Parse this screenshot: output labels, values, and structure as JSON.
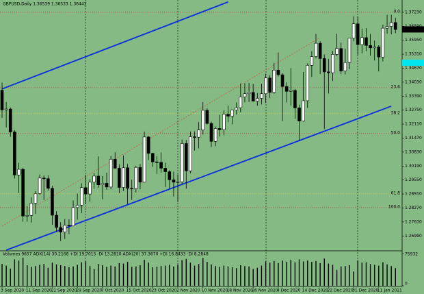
{
  "chart_data": {
    "type": "candlestick",
    "title": "GBPUSD,Daily  1.36539 1.36533 1.36443",
    "categories": [
      "3 Sep 2020",
      null,
      null,
      null,
      null,
      null,
      "11 Sep 2020",
      null,
      null,
      null,
      null,
      null,
      "21 Sep 2020",
      null,
      null,
      null,
      null,
      null,
      "29 Sep 2020",
      null,
      null,
      null,
      null,
      null,
      "7 Oct 2020",
      null,
      null,
      null,
      null,
      null,
      "15 Oct 2020",
      null,
      null,
      null,
      null,
      null,
      "23 Oct 2020",
      null,
      null,
      null,
      null,
      null,
      "2 Nov 2020",
      null,
      null,
      null,
      null,
      null,
      "10 Nov 2020",
      null,
      null,
      null,
      null,
      null,
      "18 Nov 2020",
      null,
      null,
      null,
      null,
      null,
      "26 Nov 2020",
      null,
      null,
      null,
      null,
      null,
      "4 Dec 2020",
      null,
      null,
      null,
      null,
      null,
      "14 Dec 2020",
      null,
      null,
      null,
      null,
      null,
      "22 Dec 2020",
      null,
      null,
      null,
      null,
      null,
      "31 Dec 2020",
      null,
      null,
      null,
      null,
      null,
      "11 Jan 2021",
      null,
      null,
      null,
      null
    ],
    "open": [
      1.3366,
      1.3276,
      1.328,
      1.3175,
      1.2978,
      1.3004,
      1.279,
      1.2793,
      1.2849,
      1.2893,
      1.2964,
      1.2961,
      1.2917,
      1.2794,
      1.2738,
      1.2717,
      1.2748,
      1.2745,
      1.2829,
      1.284,
      1.292,
      1.2891,
      1.2945,
      1.2973,
      1.2933,
      1.294,
      1.2923,
      1.305,
      1.3009,
      1.2921,
      1.3011,
      1.2917,
      1.2915,
      1.3013,
      1.2945,
      1.3152,
      1.3077,
      1.3038,
      1.3036,
      1.3009,
      1.2993,
      1.2956,
      1.2945,
      1.2947,
      1.3122,
      1.2997,
      1.3153,
      1.3151,
      1.3184,
      1.3274,
      1.3214,
      1.3132,
      1.3191,
      1.3185,
      1.3256,
      1.3247,
      1.3275,
      1.3286,
      1.3336,
      1.335,
      1.3356,
      1.3316,
      1.3329,
      1.335,
      1.3422,
      1.3356,
      1.3458,
      1.3437,
      1.3383,
      1.3361,
      1.3365,
      1.3285,
      1.3225,
      1.3318,
      1.348,
      1.352,
      1.3581,
      1.3511,
      1.345,
      1.3446,
      1.353,
      1.3557,
      1.3454,
      1.3493,
      1.3604,
      1.367,
      1.3575,
      1.3607,
      1.3571,
      1.356,
      1.3564,
      1.3518,
      1.365,
      1.3658,
      1.3676
    ],
    "high": [
      1.3401,
      1.3312,
      1.3287,
      1.3183,
      1.3034,
      1.3011,
      1.2836,
      1.2876,
      1.2904,
      1.298,
      1.2976,
      1.2976,
      1.2928,
      1.2812,
      1.2762,
      1.2776,
      1.2775,
      1.2862,
      1.2893,
      1.294,
      1.2978,
      1.2958,
      1.2987,
      1.3063,
      1.2973,
      1.2988,
      1.3065,
      1.3082,
      1.3027,
      1.3067,
      1.3028,
      1.2957,
      1.302,
      1.3028,
      1.3177,
      1.3157,
      1.308,
      1.3064,
      1.3082,
      1.3034,
      1.3,
      1.2993,
      1.2981,
      1.314,
      1.3138,
      1.3177,
      1.3178,
      1.322,
      1.3312,
      1.3284,
      1.3222,
      1.32,
      1.3253,
      1.3274,
      1.3296,
      1.3276,
      1.331,
      1.3397,
      1.3398,
      1.34,
      1.3395,
      1.3353,
      1.3396,
      1.3442,
      1.3435,
      1.3491,
      1.3539,
      1.3444,
      1.3402,
      1.3467,
      1.3372,
      1.33,
      1.345,
      1.3489,
      1.3545,
      1.3624,
      1.359,
      1.353,
      1.3509,
      1.3546,
      1.3625,
      1.3584,
      1.3556,
      1.3605,
      1.3704,
      1.3703,
      1.3648,
      1.365,
      1.3624,
      1.3593,
      1.3572,
      1.3666,
      1.3711,
      1.3711,
      1.3697
    ],
    "low": [
      1.3239,
      1.3196,
      1.3153,
      1.2962,
      1.2896,
      1.2764,
      1.2764,
      1.276,
      1.28,
      1.2888,
      1.2864,
      1.2907,
      1.275,
      1.2718,
      1.2675,
      1.2685,
      1.2708,
      1.2743,
      1.2773,
      1.2804,
      1.2844,
      1.2856,
      1.2915,
      1.292,
      1.2867,
      1.291,
      1.2913,
      1.3007,
      1.2895,
      1.2905,
      1.2845,
      1.2864,
      1.2898,
      1.2912,
      1.2945,
      1.3046,
      1.3015,
      1.2983,
      1.2988,
      1.2923,
      1.2915,
      1.288,
      1.2854,
      1.2936,
      1.2915,
      1.2986,
      1.309,
      1.31,
      1.3163,
      1.3209,
      1.3106,
      1.311,
      1.3154,
      1.316,
      1.322,
      1.321,
      1.3255,
      1.3265,
      1.3311,
      1.3312,
      1.3318,
      1.3295,
      1.3301,
      1.3308,
      1.333,
      1.335,
      1.3429,
      1.3225,
      1.331,
      1.3296,
      1.3235,
      1.3135,
      1.3222,
      1.3285,
      1.3427,
      1.3512,
      1.344,
      1.3188,
      1.3351,
      1.3408,
      1.3522,
      1.344,
      1.3438,
      1.3462,
      1.359,
      1.3528,
      1.3535,
      1.3545,
      1.3524,
      1.3502,
      1.3452,
      1.3498,
      1.3625,
      1.3622,
      1.3627
    ],
    "close": [
      1.3276,
      1.328,
      1.3175,
      1.2978,
      1.3004,
      1.279,
      1.2793,
      1.2849,
      1.2893,
      1.2964,
      1.2961,
      1.2917,
      1.2794,
      1.2738,
      1.2717,
      1.2748,
      1.2745,
      1.2829,
      1.284,
      1.292,
      1.2891,
      1.2945,
      1.2973,
      1.2933,
      1.294,
      1.2923,
      1.305,
      1.3009,
      1.2921,
      1.3011,
      1.2917,
      1.2915,
      1.3013,
      1.2945,
      1.3152,
      1.3077,
      1.3038,
      1.3036,
      1.3009,
      1.2993,
      1.2956,
      1.2945,
      1.2947,
      1.3122,
      1.2997,
      1.3153,
      1.3151,
      1.3184,
      1.3274,
      1.3214,
      1.3132,
      1.3191,
      1.3185,
      1.3256,
      1.3247,
      1.3275,
      1.3286,
      1.3336,
      1.335,
      1.3356,
      1.3316,
      1.3329,
      1.335,
      1.3422,
      1.3356,
      1.3458,
      1.3437,
      1.3383,
      1.3361,
      1.3365,
      1.3285,
      1.3225,
      1.3318,
      1.348,
      1.352,
      1.3581,
      1.3511,
      1.345,
      1.3446,
      1.353,
      1.3557,
      1.3454,
      1.3493,
      1.3604,
      1.367,
      1.3575,
      1.3607,
      1.3571,
      1.356,
      1.3564,
      1.3518,
      1.365,
      1.3658,
      1.3676,
      1.3644
    ],
    "up_color": "#ffffff",
    "down_color": "#000000",
    "background": "#85ba85",
    "ylim": [
      1.2634,
      1.3779
    ],
    "yticks": [
      {
        "value": 1.3723,
        "label": "1.37230"
      },
      {
        "value": 1.3659,
        "label": "1.36590"
      },
      {
        "value": 1.3595,
        "label": "1.35950"
      },
      {
        "value": 1.3531,
        "label": "1.35310"
      },
      {
        "value": 1.3467,
        "label": "1.34670"
      },
      {
        "value": 1.3403,
        "label": "1.34030"
      },
      {
        "value": 1.3339,
        "label": "1.33390"
      },
      {
        "value": 1.3275,
        "label": "1.32750"
      },
      {
        "value": 1.3211,
        "label": "1.32110"
      },
      {
        "value": 1.3147,
        "label": "1.31470"
      },
      {
        "value": 1.3083,
        "label": "1.30830"
      },
      {
        "value": 1.3019,
        "label": "1.30190"
      },
      {
        "value": 1.2955,
        "label": "1.29550"
      },
      {
        "value": 1.2891,
        "label": "1.28910"
      },
      {
        "value": 1.2827,
        "label": "1.28270"
      },
      {
        "value": 1.2763,
        "label": "1.27630"
      },
      {
        "value": 1.2699,
        "label": "1.26990"
      }
    ],
    "price_marker": {
      "value": 1.36443,
      "label": "1.36443"
    },
    "levels": [
      {
        "label": "0.0",
        "value": 1.3723,
        "color": "#d03030"
      },
      {
        "label": "23.6",
        "value": 1.3378,
        "color": "#d03030"
      },
      {
        "label": "38.2",
        "value": 1.3259,
        "color": "#e0e040"
      },
      {
        "label": "50.0",
        "value": 1.3168,
        "color": "#d03030"
      },
      {
        "label": "61.8",
        "value": 1.2892,
        "color": "#e0e040"
      },
      {
        "label": "100.0",
        "value": 1.2829,
        "color": "#d03030"
      }
    ],
    "trendlines": [
      {
        "x": [
          0,
          54
        ],
        "values": [
          1.3372,
          1.377
        ],
        "color": "#0a2ee0"
      },
      {
        "x": [
          1,
          93
        ],
        "values": [
          1.2634,
          1.3293
        ],
        "color": "#0a2ee0"
      },
      {
        "x": [
          0,
          76
        ],
        "values": [
          1.2744,
          1.3607
        ],
        "color": "#d05a3a"
      }
    ],
    "volume": {
      "label": "Volumes 9657  ADX(14) 30.2168 +DI 19.7015 -DI 13.2810  ADX(20) 37.3670 +DI 16.8433 -DI 8.2848",
      "values": [
        52000,
        48000,
        41000,
        63000,
        60000,
        67000,
        49000,
        45000,
        47000,
        50000,
        52000,
        43000,
        55000,
        51000,
        49000,
        47000,
        44000,
        46000,
        50000,
        56000,
        58000,
        47000,
        40000,
        52000,
        49000,
        45000,
        48000,
        46000,
        54000,
        53000,
        57000,
        45000,
        46000,
        49000,
        62000,
        55000,
        44000,
        45000,
        47000,
        48000,
        50000,
        46000,
        50000,
        61000,
        64000,
        55000,
        48000,
        52000,
        66000,
        57000,
        51000,
        47000,
        45000,
        48000,
        46000,
        44000,
        42000,
        49000,
        47000,
        46000,
        40000,
        43000,
        48000,
        58000,
        55000,
        59000,
        54000,
        60000,
        57000,
        62000,
        56000,
        63000,
        58000,
        60000,
        57000,
        59000,
        54000,
        65000,
        53000,
        50000,
        38000,
        46000,
        47000,
        49000,
        34000,
        60000,
        55000,
        56000,
        52000,
        50000,
        48000,
        56000,
        51000,
        47000,
        42000
      ],
      "color": "#000000",
      "ylim": [
        0,
        80000
      ],
      "yticks": [
        0,
        75932
      ]
    }
  }
}
